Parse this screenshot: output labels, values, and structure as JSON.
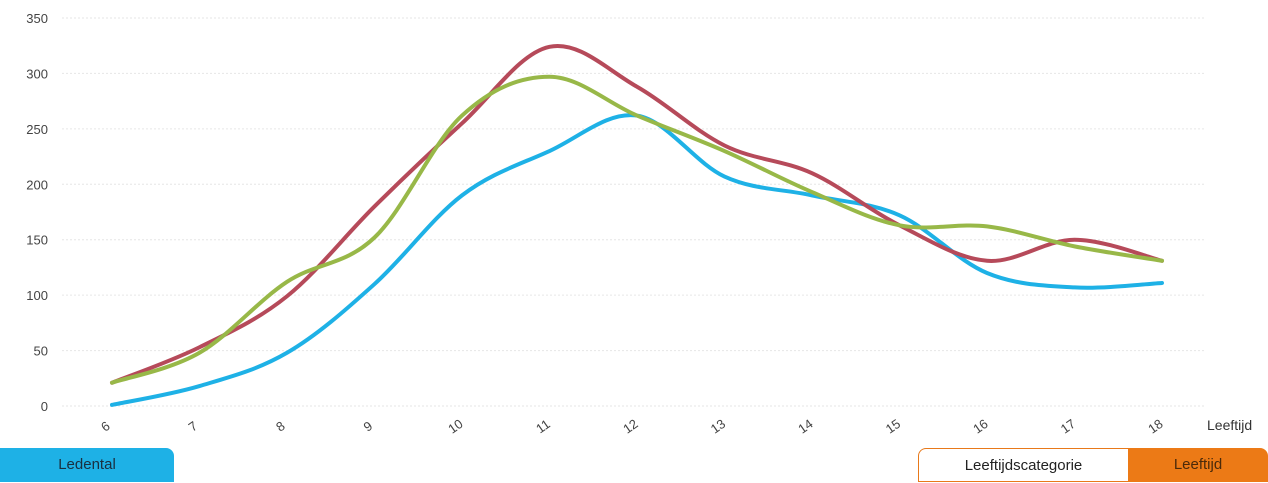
{
  "chart_data": {
    "type": "line",
    "x": [
      "6",
      "7",
      "8",
      "9",
      "10",
      "11",
      "12",
      "13",
      "14",
      "15",
      "16",
      "17",
      "18"
    ],
    "xlabel": "Leeftijd",
    "ylabel": "",
    "ylim": [
      0,
      350
    ],
    "yticks": [
      0,
      50,
      100,
      150,
      200,
      250,
      300,
      350
    ],
    "grid": true,
    "series": [
      {
        "color": "#1eb1e6",
        "values": [
          1,
          18,
          48,
          110,
          190,
          230,
          262,
          207,
          190,
          172,
          120,
          107,
          111
        ]
      },
      {
        "color": "#b64a5a",
        "values": [
          21,
          53,
          99,
          180,
          255,
          324,
          288,
          235,
          210,
          163,
          131,
          150,
          131
        ]
      },
      {
        "color": "#98b848",
        "values": [
          21,
          48,
          112,
          152,
          262,
          297,
          262,
          230,
          193,
          163,
          162,
          144,
          131
        ]
      }
    ]
  },
  "controls": {
    "ledental_label": "Ledental",
    "category_label": "Leeftijdscategorie",
    "age_label": "Leeftijd"
  }
}
